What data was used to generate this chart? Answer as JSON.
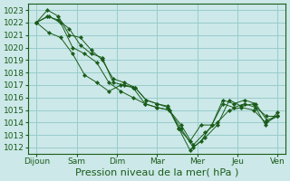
{
  "title": "Pression niveau de la mer( hPa )",
  "background_color": "#cce8e8",
  "grid_color": "#99cccc",
  "line_color": "#1a5c1a",
  "marker_color": "#1a5c1a",
  "ylim": [
    1011.5,
    1023.5
  ],
  "yticks": [
    1012,
    1013,
    1014,
    1015,
    1016,
    1017,
    1018,
    1019,
    1020,
    1021,
    1022,
    1023
  ],
  "xtick_labels": [
    "Dijoun",
    "Sam",
    "Dim",
    "Mar",
    "Mer",
    "Jeu",
    "Ven"
  ],
  "series": [
    [
      1022.0,
      1023.0,
      1022.5,
      1021.0,
      1020.8,
      1019.8,
      1019.0,
      1017.5,
      1017.2,
      1016.8,
      1015.8,
      1015.5,
      1015.3,
      1013.5,
      1011.8,
      1012.5,
      1013.8,
      1015.8,
      1015.5,
      1015.8,
      1015.5,
      1014.2,
      1014.5
    ],
    [
      1022.0,
      1022.5,
      1022.2,
      1021.5,
      1020.2,
      1019.5,
      1019.2,
      1017.2,
      1017.0,
      1016.8,
      1015.8,
      1015.5,
      1015.2,
      1013.5,
      1012.5,
      1013.8,
      1013.8,
      1015.5,
      1015.2,
      1015.5,
      1015.2,
      1014.5,
      1014.5
    ],
    [
      1022.0,
      1022.5,
      1022.0,
      1020.0,
      1019.5,
      1018.8,
      1017.2,
      1016.5,
      1016.0,
      1015.5,
      1015.2,
      1015.0,
      1013.8,
      1012.2,
      1013.2,
      1014.0,
      1015.0,
      1015.2,
      1015.0,
      1014.0,
      1014.5
    ],
    [
      1022.0,
      1021.2,
      1020.8,
      1019.5,
      1017.8,
      1017.2,
      1016.5,
      1017.0,
      1016.8,
      1015.5,
      1015.2,
      1015.0,
      1013.5,
      1012.0,
      1012.8,
      1013.8,
      1015.8,
      1015.3,
      1015.5,
      1013.8,
      1014.8
    ]
  ],
  "tick_fontsize": 6.5,
  "xlabel_fontsize": 8
}
